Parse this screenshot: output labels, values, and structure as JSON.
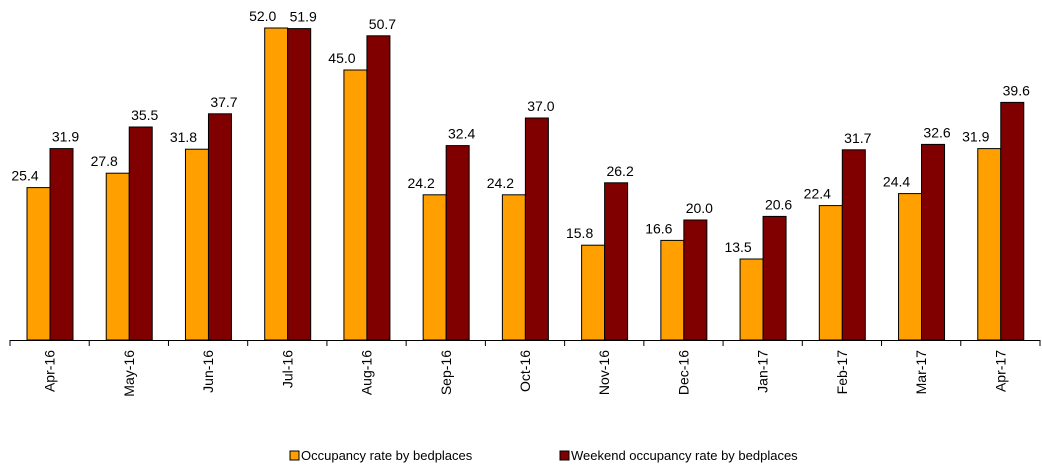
{
  "chart_data": {
    "type": "bar",
    "categories": [
      "Apr-16",
      "May-16",
      "Jun-16",
      "Jul-16",
      "Aug-16",
      "Sep-16",
      "Oct-16",
      "Nov-16",
      "Dec-16",
      "Jan-17",
      "Feb-17",
      "Mar-17",
      "Apr-17"
    ],
    "series": [
      {
        "name": "Occupancy rate by bedplaces",
        "color": "#FFA000",
        "values": [
          25.4,
          27.8,
          31.8,
          52.0,
          45.0,
          24.2,
          24.2,
          15.8,
          16.6,
          13.5,
          22.4,
          24.4,
          31.9
        ]
      },
      {
        "name": "Weekend occupancy rate by bedplaces",
        "color": "#800000",
        "values": [
          31.9,
          35.5,
          37.7,
          51.9,
          50.7,
          32.4,
          37.0,
          26.2,
          20.0,
          20.6,
          31.7,
          32.6,
          39.6
        ]
      }
    ],
    "ylim": [
      0,
      52
    ],
    "grid": false,
    "legend": "bottom"
  }
}
